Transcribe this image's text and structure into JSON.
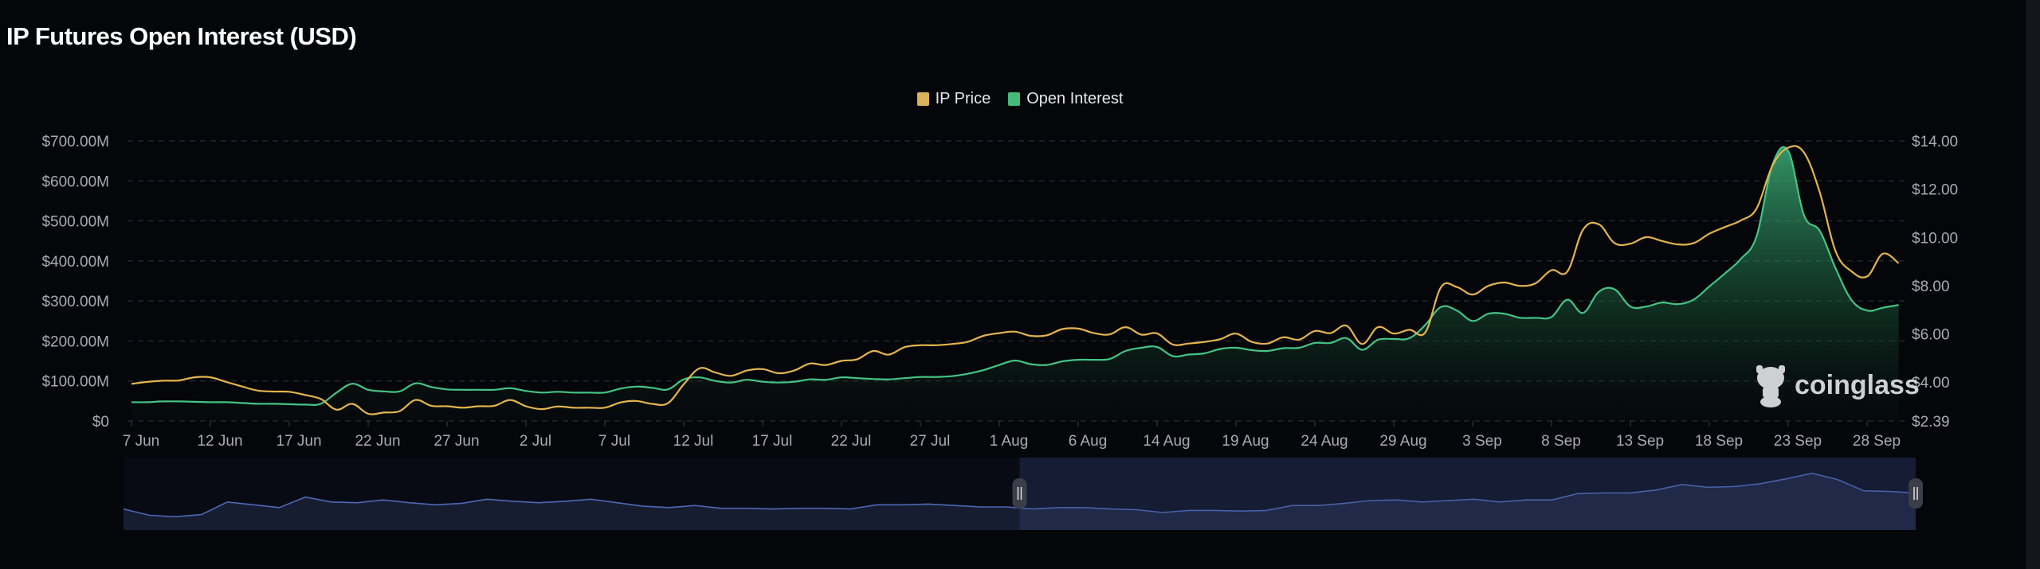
{
  "title": "IP Futures Open Interest (USD)",
  "legend": [
    {
      "label": "IP Price",
      "color": "#d9b25a"
    },
    {
      "label": "Open Interest",
      "color": "#47b97a"
    }
  ],
  "watermark": "coinglass",
  "colors": {
    "background": "#05060a",
    "price_line": "#e3b54e",
    "oi_line": "#44c485",
    "grid": "#2b2e36",
    "navigator_line": "#4d68b5"
  },
  "chart_data": {
    "type": "line",
    "title": "IP Futures Open Interest (USD)",
    "x_tick_labels": [
      "7 Jun",
      "12 Jun",
      "17 Jun",
      "22 Jun",
      "27 Jun",
      "2 Jul",
      "7 Jul",
      "12 Jul",
      "17 Jul",
      "22 Jul",
      "27 Jul",
      "1 Aug",
      "6 Aug",
      "14 Aug",
      "19 Aug",
      "24 Aug",
      "29 Aug",
      "3 Sep",
      "8 Sep",
      "13 Sep",
      "18 Sep",
      "23 Sep",
      "28 Sep"
    ],
    "x_tick_every": 5,
    "y_left": {
      "ticks": [
        "$0",
        "$100.00M",
        "$200.00M",
        "$300.00M",
        "$400.00M",
        "$500.00M",
        "$600.00M",
        "$700.00M"
      ],
      "tick_values": [
        0,
        100,
        200,
        300,
        400,
        500,
        600,
        700
      ],
      "range": [
        0,
        700
      ],
      "unit": "USD millions"
    },
    "y_right": {
      "ticks": [
        "$2.39",
        "$4.00",
        "$6.00",
        "$8.00",
        "$10.00",
        "$12.00",
        "$14.00"
      ],
      "tick_values": [
        2.39,
        4,
        6,
        8,
        10,
        12,
        14
      ],
      "range": [
        2.39,
        14
      ]
    },
    "grid": true,
    "legend_position": "top-center",
    "series": [
      {
        "name": "Open Interest",
        "type": "area",
        "axis": "left",
        "color": "#44c485",
        "values": [
          47,
          47,
          49,
          49,
          48,
          47,
          47,
          45,
          43,
          43,
          42,
          41,
          43,
          71,
          93,
          78,
          74,
          74,
          94,
          85,
          79,
          78,
          78,
          78,
          82,
          75,
          71,
          73,
          71,
          71,
          71,
          81,
          86,
          83,
          79,
          104,
          109,
          100,
          96,
          103,
          98,
          96,
          98,
          104,
          103,
          109,
          107,
          105,
          104,
          107,
          110,
          110,
          112,
          118,
          127,
          140,
          151,
          142,
          140,
          149,
          153,
          153,
          155,
          175,
          183,
          185,
          162,
          166,
          169,
          180,
          183,
          177,
          175,
          182,
          183,
          195,
          195,
          207,
          178,
          203,
          205,
          207,
          240,
          285,
          276,
          250,
          268,
          268,
          258,
          258,
          260,
          303,
          270,
          323,
          329,
          286,
          286,
          296,
          292,
          303,
          336,
          369,
          405,
          462,
          640,
          675,
          514,
          475,
          382,
          303,
          276,
          283,
          290
        ]
      },
      {
        "name": "IP Price",
        "type": "line",
        "axis": "right",
        "color": "#e3b54e",
        "values": [
          3.93,
          4.01,
          4.06,
          4.07,
          4.2,
          4.2,
          4.01,
          3.82,
          3.65,
          3.61,
          3.6,
          3.47,
          3.3,
          2.86,
          3.1,
          2.69,
          2.74,
          2.8,
          3.26,
          3.02,
          3.0,
          2.94,
          3.0,
          3.02,
          3.26,
          3.0,
          2.88,
          2.99,
          2.94,
          2.94,
          2.94,
          3.16,
          3.22,
          3.1,
          3.13,
          3.91,
          4.57,
          4.4,
          4.26,
          4.48,
          4.54,
          4.37,
          4.48,
          4.77,
          4.71,
          4.88,
          4.95,
          5.29,
          5.14,
          5.45,
          5.53,
          5.53,
          5.58,
          5.67,
          5.92,
          6.03,
          6.09,
          5.92,
          5.94,
          6.2,
          6.22,
          6.03,
          5.98,
          6.28,
          5.97,
          6.02,
          5.56,
          5.6,
          5.67,
          5.78,
          6.01,
          5.67,
          5.6,
          5.86,
          5.76,
          6.12,
          6.03,
          6.34,
          5.58,
          6.28,
          6.01,
          6.17,
          6.06,
          7.94,
          7.94,
          7.63,
          7.99,
          8.13,
          7.99,
          8.1,
          8.64,
          8.58,
          10.32,
          10.54,
          9.76,
          9.74,
          10.01,
          9.85,
          9.71,
          9.76,
          10.15,
          10.43,
          10.7,
          11.2,
          12.97,
          13.72,
          13.52,
          11.87,
          9.43,
          8.6,
          8.38,
          9.32,
          8.93
        ]
      }
    ]
  },
  "navigator": {
    "selection_start": 0.5,
    "selection_end": 1.0,
    "series_relative_level": [
      30,
      21,
      19,
      22,
      40,
      36,
      32,
      47,
      40,
      39,
      43,
      39,
      36,
      38,
      44,
      41,
      39,
      41,
      44,
      39,
      34,
      32,
      35,
      31,
      31,
      30,
      31,
      31,
      30,
      36,
      36,
      37,
      35,
      33,
      33,
      30,
      32,
      32,
      30,
      29,
      25,
      28,
      28,
      27,
      28,
      35,
      35,
      38,
      42,
      43,
      40,
      42,
      44,
      40,
      43,
      43,
      52,
      53,
      53,
      57,
      65,
      61,
      62,
      66,
      73,
      81,
      72,
      56,
      55,
      53
    ]
  }
}
